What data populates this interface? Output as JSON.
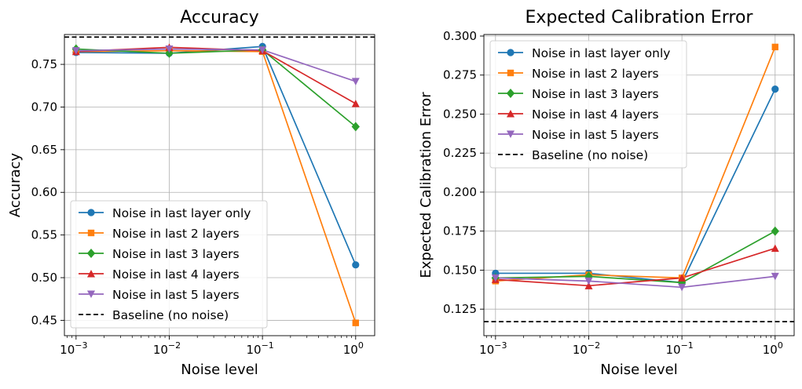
{
  "chart_data": [
    {
      "type": "line",
      "title": "Accuracy",
      "xlabel": "Noise level",
      "ylabel": "Accuracy",
      "xscale": "log",
      "x": [
        0.001,
        0.01,
        0.1,
        1
      ],
      "xtick_labels": [
        "10",
        "10",
        "10",
        "10"
      ],
      "xtick_exponents": [
        "−3",
        "−2",
        "−1",
        "0"
      ],
      "xlim": [
        0.00075,
        1.6
      ],
      "ylim": [
        0.432,
        0.785
      ],
      "yticks": [
        0.45,
        0.5,
        0.55,
        0.6,
        0.65,
        0.7,
        0.75
      ],
      "ytick_labels": [
        "0.45",
        "0.50",
        "0.55",
        "0.60",
        "0.65",
        "0.70",
        "0.75"
      ],
      "grid": true,
      "legend_position": "lower-left",
      "series": [
        {
          "name": "Noise in last layer only",
          "color": "#1f77b4",
          "marker": "circle",
          "values": [
            0.764,
            0.763,
            0.771,
            0.515
          ]
        },
        {
          "name": "Noise in last 2 layers",
          "color": "#ff7f0e",
          "marker": "square",
          "values": [
            0.765,
            0.766,
            0.765,
            0.447
          ]
        },
        {
          "name": "Noise in last 3 layers",
          "color": "#2ca02c",
          "marker": "diamond",
          "values": [
            0.768,
            0.763,
            0.767,
            0.677
          ]
        },
        {
          "name": "Noise in last 4 layers",
          "color": "#d62728",
          "marker": "triangle-up",
          "values": [
            0.765,
            0.77,
            0.766,
            0.704
          ]
        },
        {
          "name": "Noise in last 5 layers",
          "color": "#9467bd",
          "marker": "triangle-down",
          "values": [
            0.766,
            0.768,
            0.767,
            0.73
          ]
        }
      ],
      "baseline": {
        "name": "Baseline (no noise)",
        "value": 0.782,
        "color": "#000000"
      }
    },
    {
      "type": "line",
      "title": "Expected Calibration Error",
      "xlabel": "Noise level",
      "ylabel": "Expected Calibration Error",
      "xscale": "log",
      "x": [
        0.001,
        0.01,
        0.1,
        1
      ],
      "xtick_labels": [
        "10",
        "10",
        "10",
        "10"
      ],
      "xtick_exponents": [
        "−3",
        "−2",
        "−1",
        "0"
      ],
      "xlim": [
        0.00075,
        1.6
      ],
      "ylim": [
        0.108,
        0.301
      ],
      "yticks": [
        0.125,
        0.15,
        0.175,
        0.2,
        0.225,
        0.25,
        0.275,
        0.3
      ],
      "ytick_labels": [
        "0.125",
        "0.150",
        "0.175",
        "0.200",
        "0.225",
        "0.250",
        "0.275",
        "0.300"
      ],
      "grid": true,
      "legend_position": "upper-left",
      "series": [
        {
          "name": "Noise in last layer only",
          "color": "#1f77b4",
          "marker": "circle",
          "values": [
            0.148,
            0.148,
            0.142,
            0.266
          ]
        },
        {
          "name": "Noise in last 2 layers",
          "color": "#ff7f0e",
          "marker": "square",
          "values": [
            0.143,
            0.147,
            0.145,
            0.293
          ]
        },
        {
          "name": "Noise in last 3 layers",
          "color": "#2ca02c",
          "marker": "diamond",
          "values": [
            0.145,
            0.146,
            0.142,
            0.175
          ]
        },
        {
          "name": "Noise in last 4 layers",
          "color": "#d62728",
          "marker": "triangle-up",
          "values": [
            0.144,
            0.14,
            0.145,
            0.164
          ]
        },
        {
          "name": "Noise in last 5 layers",
          "color": "#9467bd",
          "marker": "triangle-down",
          "values": [
            0.145,
            0.143,
            0.139,
            0.146
          ]
        }
      ],
      "baseline": {
        "name": "Baseline (no noise)",
        "value": 0.117,
        "color": "#000000"
      }
    }
  ]
}
